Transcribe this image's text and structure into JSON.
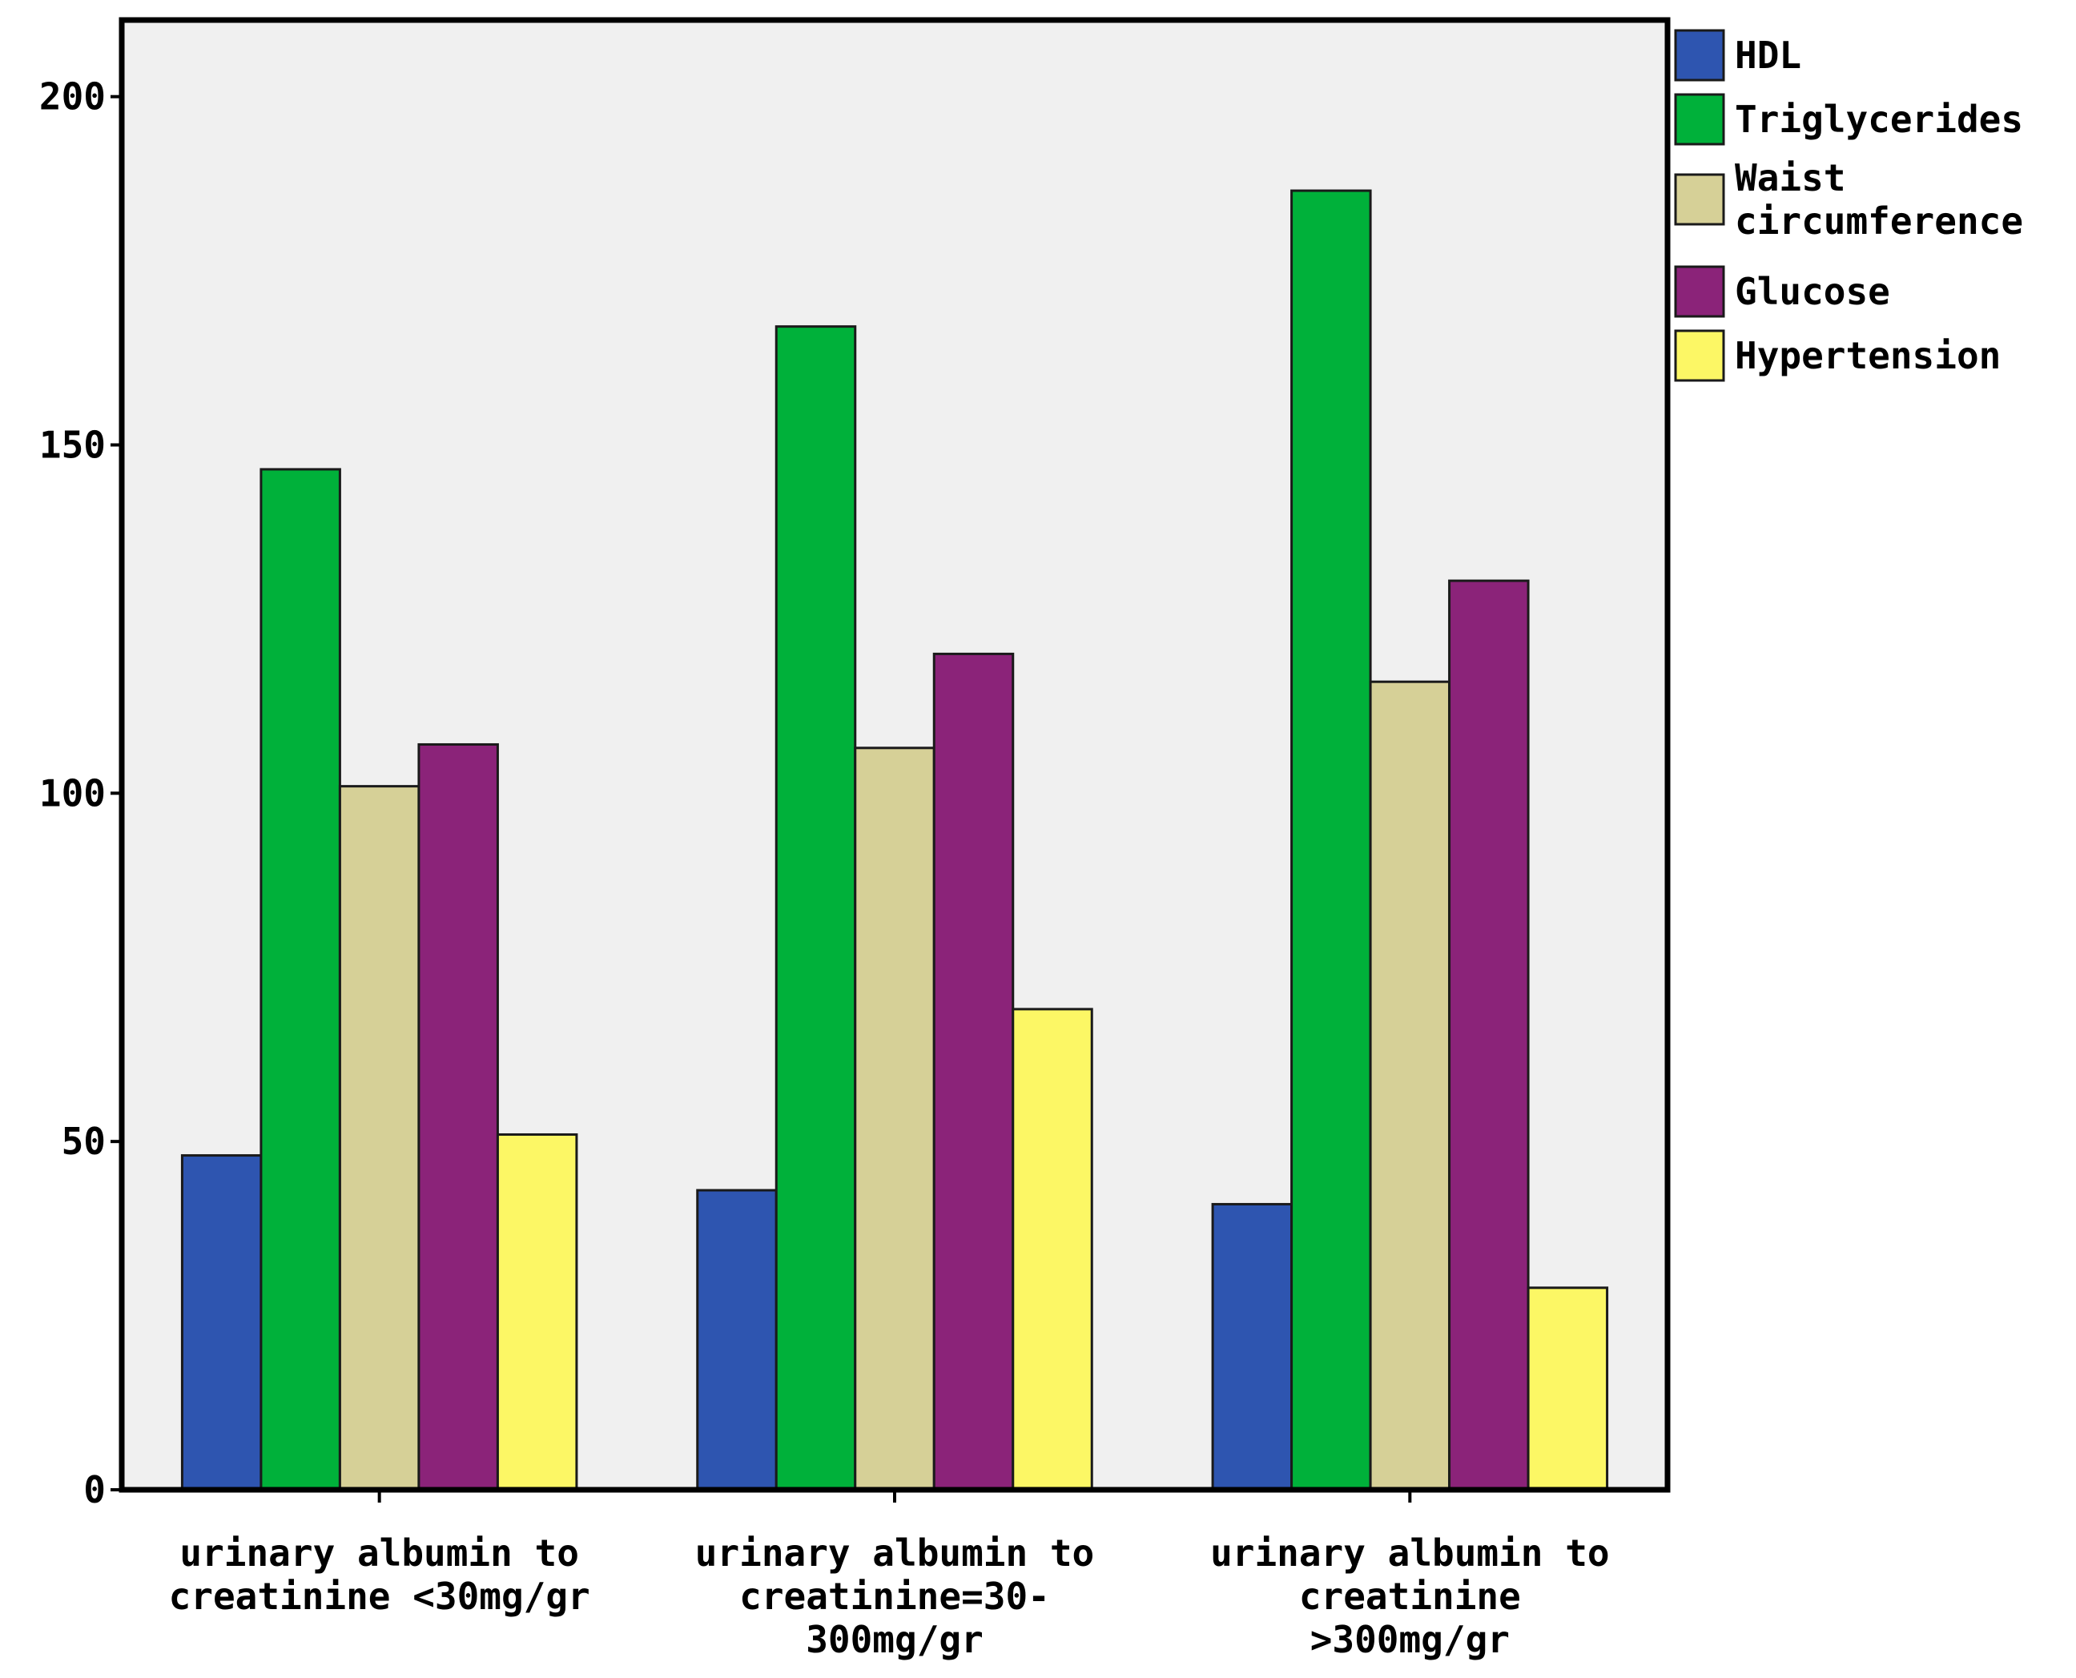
{
  "chart_data": {
    "type": "bar",
    "title": "",
    "xlabel": "",
    "ylabel": "",
    "ylim": [
      0,
      211
    ],
    "yticks": [
      0,
      50,
      100,
      150,
      200
    ],
    "grid": false,
    "legend_position": "right-top",
    "categories": [
      [
        "urinary albumin to",
        "creatinine <30mg/gr"
      ],
      [
        "urinary albumin to",
        "creatinine=30-",
        "300mg/gr"
      ],
      [
        "urinary albumin to",
        "creatinine",
        ">300mg/gr"
      ]
    ],
    "series": [
      {
        "name": [
          "HDL"
        ],
        "color": "#2e55b0",
        "values": [
          48,
          43,
          41
        ]
      },
      {
        "name": [
          "Triglycerides"
        ],
        "color": "#00b13a",
        "values": [
          146.5,
          167,
          186.5
        ]
      },
      {
        "name": [
          "Waist",
          "circumference"
        ],
        "color": "#d6d097",
        "values": [
          101,
          106.5,
          116
        ]
      },
      {
        "name": [
          "Glucose"
        ],
        "color": "#8b2379",
        "values": [
          107,
          120,
          130.5
        ]
      },
      {
        "name": [
          "Hypertension"
        ],
        "color": "#fcf765",
        "values": [
          51,
          69,
          29
        ]
      }
    ],
    "plot_background": "#f0f0f0"
  }
}
